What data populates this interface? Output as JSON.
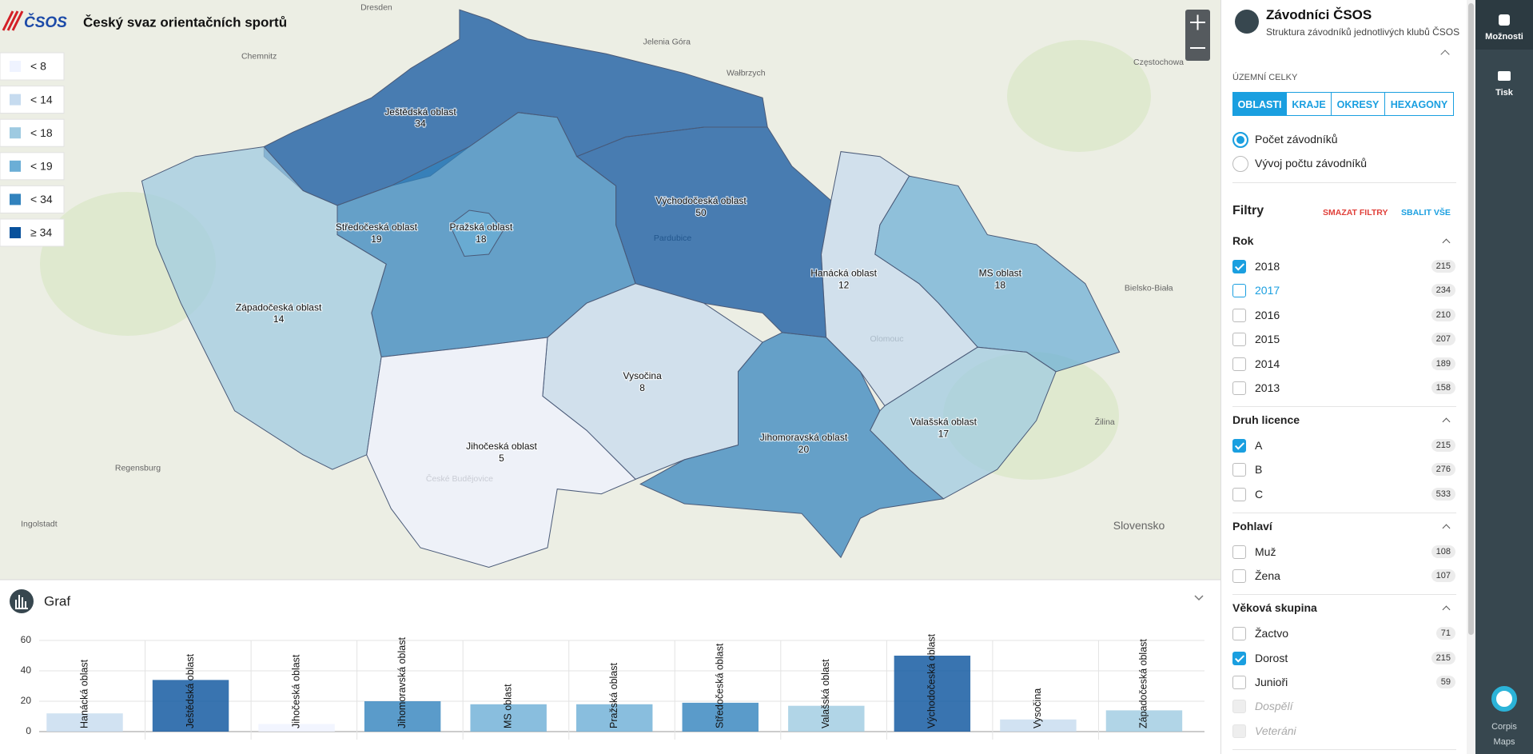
{
  "header": {
    "logo": "ČSOS",
    "title": "Český svaz orientačních sportů"
  },
  "legend": [
    {
      "label": "< 8",
      "color": "#eff3ff"
    },
    {
      "label": "< 14",
      "color": "#c6dbef"
    },
    {
      "label": "< 18",
      "color": "#9ecae1"
    },
    {
      "label": "< 19",
      "color": "#6baed6"
    },
    {
      "label": "< 34",
      "color": "#3182bd"
    },
    {
      "label": "≥ 34",
      "color": "#08519c"
    }
  ],
  "map": {
    "places": [
      "Dresden",
      "Chemnitz",
      "Jelenia Góra",
      "Wałbrzych",
      "Częstochowa",
      "Regensburg",
      "Ingolstadt",
      "Bielsko-Biała",
      "Žilina",
      "Slovensko",
      "Pardubice",
      "Olomouc",
      "České Budějovice"
    ],
    "regions": [
      {
        "name": "Ještědská oblast",
        "value": 34,
        "color": "#08519c"
      },
      {
        "name": "Středočeská oblast",
        "value": 19,
        "color": "#3182bd"
      },
      {
        "name": "Pražská oblast",
        "value": 18,
        "color": "#6baed6"
      },
      {
        "name": "Východočeská oblast",
        "value": 50,
        "color": "#08519c"
      },
      {
        "name": "Západočeská oblast",
        "value": 14,
        "color": "#9ecae1"
      },
      {
        "name": "Hanácká oblast",
        "value": 12,
        "color": "#c6dbef"
      },
      {
        "name": "MS oblast",
        "value": 18,
        "color": "#6baed6"
      },
      {
        "name": "Vysočina",
        "value": 8,
        "color": "#c6dbef"
      },
      {
        "name": "Jihočeská oblast",
        "value": 5,
        "color": "#eff3ff"
      },
      {
        "name": "Jihomoravská oblast",
        "value": 20,
        "color": "#3182bd"
      },
      {
        "name": "Valašská oblast",
        "value": 17,
        "color": "#9ecae1"
      }
    ]
  },
  "chart_panel": {
    "title": "Graf"
  },
  "chart_data": {
    "type": "bar",
    "categories": [
      "Hanácká oblast",
      "Ještědská oblast",
      "Jihočeská oblast",
      "Jihomoravská oblast",
      "MS oblast",
      "Pražská oblast",
      "Středočeská oblast",
      "Valašská oblast",
      "Východočeská oblast",
      "Vysočina",
      "Západočeská oblast"
    ],
    "values": [
      12,
      34,
      5,
      20,
      18,
      18,
      19,
      17,
      50,
      8,
      14
    ],
    "colors": [
      "#c6dbef",
      "#08519c",
      "#eff3ff",
      "#3182bd",
      "#6baed6",
      "#6baed6",
      "#3182bd",
      "#9ecae1",
      "#08519c",
      "#c6dbef",
      "#9ecae1"
    ],
    "ylim": [
      0,
      60
    ],
    "yticks": [
      0,
      20,
      40,
      60
    ],
    "grid": true
  },
  "sidebar": {
    "title": "Závodníci ČSOS",
    "subtitle": "Struktura závodníků jednotlivých klubů ČSOS",
    "territory_label": "ÚZEMNÍ CELKY",
    "tabs": [
      {
        "label": "OBLASTI",
        "active": true
      },
      {
        "label": "KRAJE"
      },
      {
        "label": "OKRESY"
      },
      {
        "label": "HEXAGONY"
      }
    ],
    "modes": [
      {
        "label": "Počet závodníků",
        "checked": true
      },
      {
        "label": "Vývoj počtu závodníků"
      }
    ],
    "filters_title": "Filtry",
    "clear": "SMAZAT FILTRY",
    "collapse": "SBALIT VŠE",
    "groups": [
      {
        "title": "Rok",
        "items": [
          {
            "label": "2018",
            "count": 215,
            "checked": true
          },
          {
            "label": "2017",
            "count": 234,
            "hover": true
          },
          {
            "label": "2016",
            "count": 210
          },
          {
            "label": "2015",
            "count": 207
          },
          {
            "label": "2014",
            "count": 189
          },
          {
            "label": "2013",
            "count": 158
          }
        ]
      },
      {
        "title": "Druh licence",
        "items": [
          {
            "label": "A",
            "count": 215,
            "checked": true
          },
          {
            "label": "B",
            "count": 276
          },
          {
            "label": "C",
            "count": 533
          }
        ]
      },
      {
        "title": "Pohlaví",
        "items": [
          {
            "label": "Muž",
            "count": 108
          },
          {
            "label": "Žena",
            "count": 107
          }
        ]
      },
      {
        "title": "Věková skupina",
        "items": [
          {
            "label": "Žactvo",
            "count": 71
          },
          {
            "label": "Dorost",
            "count": 215,
            "checked": true
          },
          {
            "label": "Junioři",
            "count": 59
          },
          {
            "label": "Dospělí",
            "disabled": true
          },
          {
            "label": "Veteráni",
            "disabled": true
          }
        ]
      }
    ]
  },
  "toolbar": {
    "options": "Možnosti",
    "print": "Tisk",
    "brand": [
      "Corpis",
      "Maps"
    ]
  }
}
